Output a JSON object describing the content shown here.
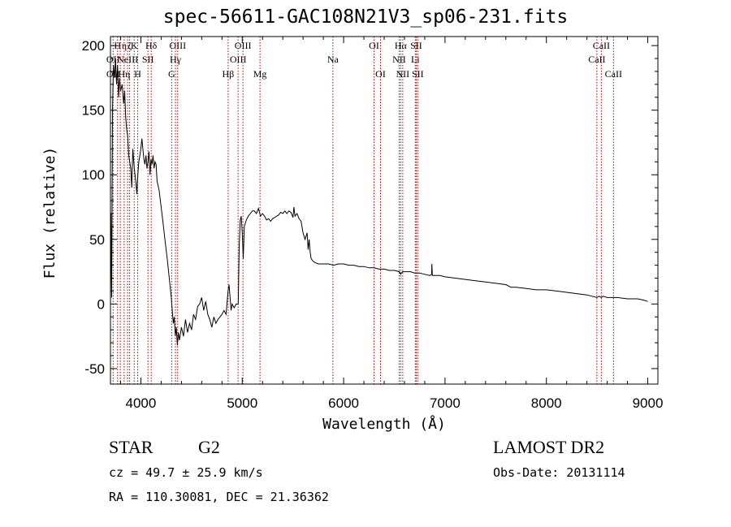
{
  "title": "spec-56611-GAC108N21V3_sp06-231.fits",
  "footer": {
    "class_label": "STAR",
    "subclass": "G2",
    "survey": "LAMOST DR2",
    "cz": "cz = 49.7 ± 25.9 km/s",
    "obs_date": "Obs-Date: 20131114",
    "coords": "RA = 110.30081, DEC =  21.36362"
  },
  "chart_data": {
    "type": "line",
    "xlabel": "Wavelength (Å)",
    "ylabel": "Flux (relative)",
    "xlim": [
      3700,
      9100
    ],
    "ylim": [
      -62,
      207
    ],
    "xticks": [
      4000,
      5000,
      6000,
      7000,
      8000,
      9000
    ],
    "yticks": [
      -50,
      0,
      50,
      100,
      150,
      200
    ],
    "grid": false,
    "spectrum": [
      [
        3700,
        0
      ],
      [
        3705,
        70
      ],
      [
        3712,
        5
      ],
      [
        3720,
        150
      ],
      [
        3730,
        185
      ],
      [
        3740,
        175
      ],
      [
        3750,
        190
      ],
      [
        3760,
        170
      ],
      [
        3770,
        185
      ],
      [
        3780,
        160
      ],
      [
        3790,
        175
      ],
      [
        3800,
        165
      ],
      [
        3815,
        170
      ],
      [
        3830,
        155
      ],
      [
        3840,
        165
      ],
      [
        3850,
        145
      ],
      [
        3860,
        135
      ],
      [
        3870,
        130
      ],
      [
        3880,
        115
      ],
      [
        3890,
        110
      ],
      [
        3900,
        105
      ],
      [
        3910,
        90
      ],
      [
        3920,
        120
      ],
      [
        3935,
        105
      ],
      [
        3950,
        95
      ],
      [
        3960,
        85
      ],
      [
        3970,
        100
      ],
      [
        3980,
        110
      ],
      [
        3990,
        115
      ],
      [
        4000,
        120
      ],
      [
        4010,
        128
      ],
      [
        4020,
        120
      ],
      [
        4030,
        112
      ],
      [
        4040,
        108
      ],
      [
        4050,
        115
      ],
      [
        4060,
        105
      ],
      [
        4070,
        110
      ],
      [
        4080,
        118
      ],
      [
        4090,
        100
      ],
      [
        4100,
        112
      ],
      [
        4110,
        108
      ],
      [
        4120,
        115
      ],
      [
        4130,
        105
      ],
      [
        4140,
        110
      ],
      [
        4150,
        108
      ],
      [
        4160,
        95
      ],
      [
        4180,
        88
      ],
      [
        4200,
        75
      ],
      [
        4220,
        62
      ],
      [
        4240,
        48
      ],
      [
        4260,
        35
      ],
      [
        4280,
        20
      ],
      [
        4300,
        5
      ],
      [
        4310,
        -5
      ],
      [
        4320,
        -15
      ],
      [
        4330,
        -10
      ],
      [
        4340,
        -25
      ],
      [
        4350,
        -18
      ],
      [
        4360,
        -32
      ],
      [
        4370,
        -22
      ],
      [
        4380,
        -28
      ],
      [
        4400,
        -18
      ],
      [
        4420,
        -25
      ],
      [
        4440,
        -12
      ],
      [
        4460,
        -22
      ],
      [
        4480,
        -15
      ],
      [
        4500,
        -20
      ],
      [
        4520,
        -8
      ],
      [
        4540,
        -12
      ],
      [
        4560,
        -2
      ],
      [
        4580,
        0
      ],
      [
        4600,
        5
      ],
      [
        4620,
        -5
      ],
      [
        4640,
        2
      ],
      [
        4660,
        -8
      ],
      [
        4680,
        -12
      ],
      [
        4700,
        -18
      ],
      [
        4720,
        -10
      ],
      [
        4740,
        -15
      ],
      [
        4760,
        -12
      ],
      [
        4780,
        -10
      ],
      [
        4800,
        -8
      ],
      [
        4820,
        -5
      ],
      [
        4840,
        -8
      ],
      [
        4860,
        10
      ],
      [
        4870,
        15
      ],
      [
        4880,
        5
      ],
      [
        4890,
        -5
      ],
      [
        4900,
        0
      ],
      [
        4920,
        -3
      ],
      [
        4940,
        0
      ],
      [
        4960,
        0
      ],
      [
        4970,
        45
      ],
      [
        4980,
        65
      ],
      [
        4990,
        68
      ],
      [
        5000,
        55
      ],
      [
        5010,
        35
      ],
      [
        5020,
        60
      ],
      [
        5040,
        65
      ],
      [
        5060,
        68
      ],
      [
        5080,
        70
      ],
      [
        5100,
        72
      ],
      [
        5120,
        72
      ],
      [
        5140,
        70
      ],
      [
        5160,
        74
      ],
      [
        5180,
        68
      ],
      [
        5200,
        70
      ],
      [
        5220,
        68
      ],
      [
        5240,
        65
      ],
      [
        5260,
        66
      ],
      [
        5280,
        64
      ],
      [
        5300,
        66
      ],
      [
        5320,
        67
      ],
      [
        5340,
        68
      ],
      [
        5360,
        69
      ],
      [
        5380,
        71
      ],
      [
        5400,
        70
      ],
      [
        5420,
        72
      ],
      [
        5440,
        70
      ],
      [
        5460,
        72
      ],
      [
        5480,
        71
      ],
      [
        5500,
        67
      ],
      [
        5510,
        75
      ],
      [
        5520,
        68
      ],
      [
        5540,
        70
      ],
      [
        5560,
        66
      ],
      [
        5580,
        64
      ],
      [
        5600,
        55
      ],
      [
        5620,
        50
      ],
      [
        5640,
        55
      ],
      [
        5650,
        42
      ],
      [
        5660,
        50
      ],
      [
        5670,
        40
      ],
      [
        5680,
        35
      ],
      [
        5700,
        33
      ],
      [
        5720,
        32
      ],
      [
        5750,
        31
      ],
      [
        5800,
        31
      ],
      [
        5850,
        31
      ],
      [
        5900,
        30
      ],
      [
        5950,
        31
      ],
      [
        6000,
        31
      ],
      [
        6050,
        30
      ],
      [
        6100,
        30
      ],
      [
        6150,
        29
      ],
      [
        6200,
        29
      ],
      [
        6250,
        28
      ],
      [
        6300,
        28
      ],
      [
        6350,
        27
      ],
      [
        6400,
        27
      ],
      [
        6450,
        26
      ],
      [
        6500,
        26
      ],
      [
        6550,
        25
      ],
      [
        6563,
        23
      ],
      [
        6580,
        25
      ],
      [
        6620,
        25
      ],
      [
        6660,
        25
      ],
      [
        6700,
        24
      ],
      [
        6750,
        24
      ],
      [
        6800,
        23
      ],
      [
        6850,
        22
      ],
      [
        6868,
        23
      ],
      [
        6870,
        31
      ],
      [
        6875,
        22
      ],
      [
        6900,
        22
      ],
      [
        6950,
        22
      ],
      [
        7000,
        21
      ],
      [
        7100,
        20
      ],
      [
        7200,
        19
      ],
      [
        7300,
        18
      ],
      [
        7400,
        17
      ],
      [
        7500,
        16
      ],
      [
        7600,
        15
      ],
      [
        7650,
        13
      ],
      [
        7700,
        13
      ],
      [
        7800,
        12
      ],
      [
        7900,
        11
      ],
      [
        8000,
        11
      ],
      [
        8100,
        10
      ],
      [
        8200,
        9
      ],
      [
        8300,
        8
      ],
      [
        8400,
        7
      ],
      [
        8498,
        5
      ],
      [
        8520,
        6
      ],
      [
        8542,
        5
      ],
      [
        8560,
        6
      ],
      [
        8600,
        5
      ],
      [
        8662,
        5
      ],
      [
        8700,
        5
      ],
      [
        8800,
        4
      ],
      [
        8900,
        4
      ],
      [
        8960,
        3
      ],
      [
        9000,
        2
      ]
    ],
    "lines": [
      {
        "wl": 3726,
        "top": "",
        "mid": "OII",
        "low": "OII"
      },
      {
        "wl": 3770,
        "top": "H",
        "mid": "",
        "low": ""
      },
      {
        "wl": 3797,
        "top": "",
        "mid": "",
        "low": ""
      },
      {
        "wl": 3835,
        "top": "η",
        "mid": "",
        "low": "Hη"
      },
      {
        "wl": 3869,
        "top": "",
        "mid": "NeIII",
        "low": ""
      },
      {
        "wl": 3889,
        "top": "ζ",
        "mid": "",
        "low": ""
      },
      {
        "wl": 3934,
        "top": "K",
        "mid": "",
        "low": ""
      },
      {
        "wl": 3969,
        "top": "",
        "mid": "",
        "low": "H"
      },
      {
        "wl": 4070,
        "top": "",
        "mid": "SII",
        "low": ""
      },
      {
        "wl": 4102,
        "top": "Hδ",
        "mid": "",
        "low": ""
      },
      {
        "wl": 4304,
        "top": "",
        "mid": "",
        "low": "G"
      },
      {
        "wl": 4341,
        "top": "",
        "mid": "Hγ",
        "low": ""
      },
      {
        "wl": 4363,
        "top": "OIII",
        "mid": "",
        "low": ""
      },
      {
        "wl": 4861,
        "top": "",
        "mid": "",
        "low": "Hβ"
      },
      {
        "wl": 4959,
        "top": "",
        "mid": "OIII",
        "low": ""
      },
      {
        "wl": 5007,
        "top": "OIII",
        "mid": "",
        "low": ""
      },
      {
        "wl": 5175,
        "top": "",
        "mid": "",
        "low": "Mg"
      },
      {
        "wl": 5894,
        "top": "",
        "mid": "Na",
        "low": ""
      },
      {
        "wl": 6300,
        "top": "OI",
        "mid": "",
        "low": ""
      },
      {
        "wl": 6364,
        "top": "",
        "mid": "",
        "low": "OI"
      },
      {
        "wl": 6548,
        "top": "",
        "mid": "NII",
        "low": ""
      },
      {
        "wl": 6563,
        "top": "Hα",
        "mid": "",
        "low": ""
      },
      {
        "wl": 6583,
        "top": "",
        "mid": "",
        "low": "NII"
      },
      {
        "wl": 6707,
        "top": "",
        "mid": "Li",
        "low": ""
      },
      {
        "wl": 6716,
        "top": "SII",
        "mid": "",
        "low": ""
      },
      {
        "wl": 6731,
        "top": "",
        "mid": "",
        "low": "SII"
      },
      {
        "wl": 8498,
        "top": "",
        "mid": "CaII",
        "low": ""
      },
      {
        "wl": 8542,
        "top": "CaII",
        "mid": "",
        "low": ""
      },
      {
        "wl": 8662,
        "top": "",
        "mid": "",
        "low": "CaII"
      }
    ]
  }
}
